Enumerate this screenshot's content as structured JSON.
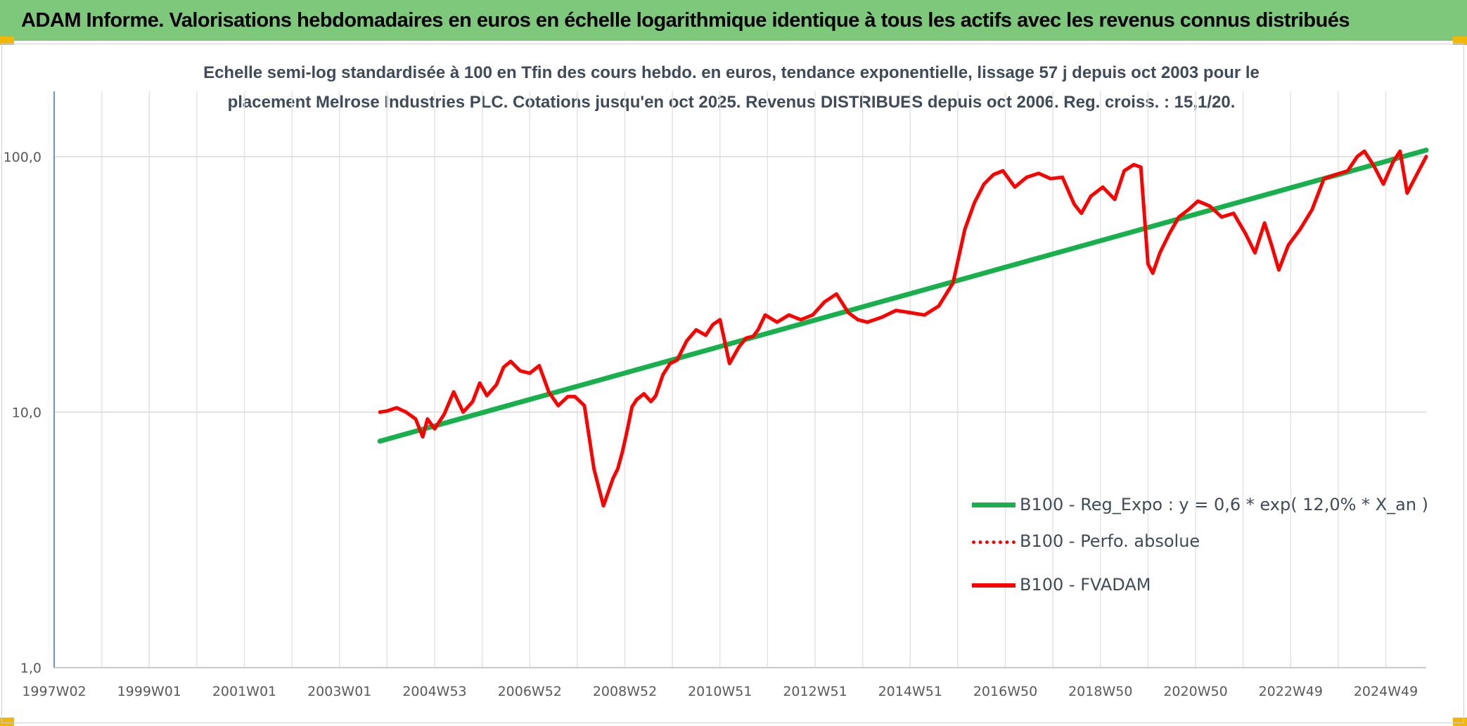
{
  "page": {
    "banner_title": "ADAM Informe. Valorisations hebdomadaires en euros en échelle logarithmique identique à tous les actifs avec les revenus connus distribués"
  },
  "chart_data": {
    "type": "line",
    "title_line1": "Echelle semi-log standardisée à 100 en Tfin des cours hebdo. en euros, tendance exponentielle, lissage 57 j depuis oct 2003 pour le",
    "title_line2": "placement Melrose Industries PLC. Cotations jusqu'en oct 2025. Revenus DISTRIBUES depuis oct 2006. Reg. croiss. : 15,1/20.",
    "yscale": "log",
    "ylim": [
      1,
      180
    ],
    "yticks": [
      {
        "value": 1,
        "label": "1,0"
      },
      {
        "value": 10,
        "label": "10,0"
      },
      {
        "value": 100,
        "label": "100,0"
      }
    ],
    "xlim": [
      1997.0,
      2025.85
    ],
    "xticks": [
      {
        "value": 1997.0,
        "label": "1997W02"
      },
      {
        "value": 1999.0,
        "label": "1999W01"
      },
      {
        "value": 2001.0,
        "label": "2001W01"
      },
      {
        "value": 2003.0,
        "label": "2003W01"
      },
      {
        "value": 2005.0,
        "label": "2004W53"
      },
      {
        "value": 2007.0,
        "label": "2006W52"
      },
      {
        "value": 2009.0,
        "label": "2008W52"
      },
      {
        "value": 2011.0,
        "label": "2010W51"
      },
      {
        "value": 2013.0,
        "label": "2012W51"
      },
      {
        "value": 2015.0,
        "label": "2014W51"
      },
      {
        "value": 2017.0,
        "label": "2016W50"
      },
      {
        "value": 2019.0,
        "label": "2018W50"
      },
      {
        "value": 2021.0,
        "label": "2020W50"
      },
      {
        "value": 2023.0,
        "label": "2022W49"
      },
      {
        "value": 2025.0,
        "label": "2024W49"
      }
    ],
    "legend_position": "bottom-right",
    "series": [
      {
        "name": "B100 - Reg_Expo : y = 0,6 * exp( 12,0% *  X_an )",
        "color": "#18b04c",
        "style": "solid",
        "x": [
          2003.85,
          2025.85
        ],
        "y": [
          7.7,
          106
        ]
      },
      {
        "name": "B100 - Perfo. absolue",
        "color": "#ff0000",
        "style": "dotted",
        "x": [],
        "y": []
      },
      {
        "name": "B100 - FVADAM",
        "color": "#ff0000",
        "style": "solid",
        "x": [
          2003.85,
          2004.0,
          2004.2,
          2004.4,
          2004.6,
          2004.75,
          2004.85,
          2005.0,
          2005.2,
          2005.4,
          2005.6,
          2005.8,
          2005.95,
          2006.1,
          2006.3,
          2006.45,
          2006.6,
          2006.8,
          2007.0,
          2007.2,
          2007.4,
          2007.6,
          2007.8,
          2007.95,
          2008.15,
          2008.35,
          2008.55,
          2008.75,
          2008.85,
          2008.95,
          2009.05,
          2009.15,
          2009.25,
          2009.4,
          2009.55,
          2009.65,
          2009.8,
          2009.95,
          2010.1,
          2010.3,
          2010.5,
          2010.7,
          2010.85,
          2011.0,
          2011.2,
          2011.4,
          2011.55,
          2011.7,
          2011.8,
          2011.95,
          2012.2,
          2012.45,
          2012.7,
          2012.95,
          2013.2,
          2013.45,
          2013.7,
          2013.9,
          2014.1,
          2014.4,
          2014.7,
          2015.0,
          2015.3,
          2015.6,
          2015.9,
          2016.15,
          2016.35,
          2016.55,
          2016.75,
          2016.95,
          2017.2,
          2017.45,
          2017.7,
          2017.95,
          2018.2,
          2018.45,
          2018.6,
          2018.8,
          2019.05,
          2019.3,
          2019.5,
          2019.7,
          2019.85,
          2020.0,
          2020.1,
          2020.25,
          2020.45,
          2020.65,
          2020.85,
          2021.05,
          2021.3,
          2021.55,
          2021.8,
          2022.05,
          2022.25,
          2022.45,
          2022.6,
          2022.75,
          2022.95,
          2023.2,
          2023.45,
          2023.7,
          2023.95,
          2024.2,
          2024.4,
          2024.55,
          2024.75,
          2024.95,
          2025.15,
          2025.3,
          2025.45,
          2025.65,
          2025.85
        ],
        "y": [
          10.0,
          10.1,
          10.4,
          10.0,
          9.4,
          8.0,
          9.4,
          8.6,
          9.8,
          12.0,
          10.0,
          11.0,
          13.0,
          11.6,
          12.8,
          15.0,
          15.8,
          14.5,
          14.2,
          15.2,
          12.0,
          10.6,
          11.5,
          11.5,
          10.6,
          6.0,
          4.3,
          5.5,
          6.0,
          7.0,
          8.5,
          10.5,
          11.2,
          11.8,
          11.0,
          11.6,
          14.0,
          15.5,
          16.0,
          19.0,
          21.0,
          20.0,
          22.0,
          23.0,
          15.5,
          18.0,
          19.5,
          19.8,
          21.0,
          24.0,
          22.5,
          24.0,
          23.0,
          24.0,
          27.0,
          29.0,
          24.5,
          23.0,
          22.5,
          23.5,
          25.0,
          24.5,
          24.0,
          26.0,
          32.0,
          52.0,
          66.0,
          78.0,
          85.0,
          88.0,
          76.0,
          83.0,
          86.0,
          82.0,
          83.0,
          65.0,
          60.0,
          70.0,
          76.0,
          68.0,
          88.0,
          93.0,
          91.0,
          38.0,
          35.0,
          42.0,
          50.0,
          58.0,
          62.0,
          67.0,
          64.0,
          58.0,
          60.0,
          50.0,
          42.0,
          55.0,
          45.0,
          36.0,
          45.0,
          52.0,
          62.0,
          82.0,
          85.0,
          88.0,
          100.0,
          105.0,
          92.0,
          78.0,
          95.0,
          105.0,
          72.0,
          85.0,
          100.0
        ]
      }
    ]
  }
}
